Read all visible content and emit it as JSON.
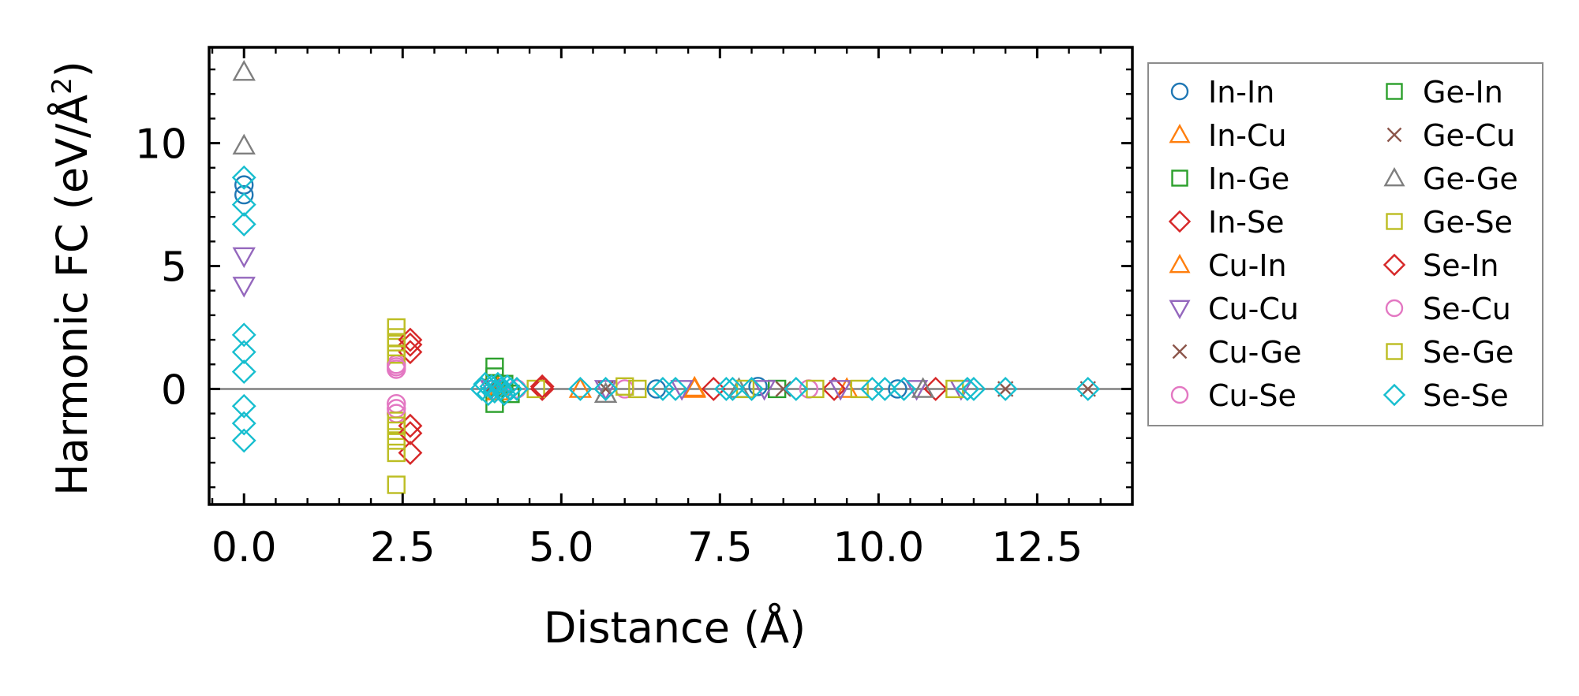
{
  "chart_data": {
    "type": "scatter",
    "xlabel": "Distance (Å)",
    "ylabel_main": "Harmonic FC (eV/Å",
    "ylabel_sup": "2",
    "ylabel_close": ")",
    "xlim": [
      -0.55,
      14.0
    ],
    "ylim": [
      -4.7,
      13.9
    ],
    "xticks": [
      0.0,
      2.5,
      5.0,
      7.5,
      10.0,
      12.5
    ],
    "xtick_labels": [
      "0.0",
      "2.5",
      "5.0",
      "7.5",
      "10.0",
      "12.5"
    ],
    "yticks": [
      0,
      5,
      10
    ],
    "ytick_labels": [
      "0",
      "5",
      "10"
    ],
    "legend_location": "outside-right",
    "series": [
      {
        "name": "In-In",
        "color": "#1f77b4",
        "marker": "circle",
        "points": [
          [
            0,
            8.3
          ],
          [
            0,
            7.9
          ],
          [
            6.5,
            0.0
          ],
          [
            8.1,
            0.1
          ],
          [
            10.3,
            0.0
          ]
        ]
      },
      {
        "name": "In-Cu",
        "color": "#ff7f0e",
        "marker": "triangle-up",
        "points": [
          [
            4.0,
            0.1
          ],
          [
            5.3,
            0.0
          ],
          [
            7.1,
            0.0
          ],
          [
            9.5,
            0.0
          ]
        ]
      },
      {
        "name": "In-Ge",
        "color": "#2ca02c",
        "marker": "square",
        "points": [
          [
            3.95,
            0.9
          ],
          [
            3.95,
            -0.6
          ],
          [
            4.1,
            0.2
          ],
          [
            8.4,
            0.0
          ]
        ]
      },
      {
        "name": "In-Se",
        "color": "#d62728",
        "marker": "diamond",
        "points": [
          [
            2.62,
            1.8
          ],
          [
            2.62,
            1.5
          ],
          [
            2.62,
            -1.5
          ],
          [
            2.62,
            -2.6
          ],
          [
            4.7,
            0.0
          ],
          [
            7.4,
            0.0
          ],
          [
            9.3,
            0.0
          ],
          [
            10.9,
            0.0
          ]
        ]
      },
      {
        "name": "Cu-In",
        "color": "#ff7f0e",
        "marker": "triangle-up",
        "points": [
          [
            4.0,
            -0.1
          ],
          [
            7.1,
            0.05
          ]
        ]
      },
      {
        "name": "Cu-Cu",
        "color": "#9467bd",
        "marker": "triangle-down",
        "points": [
          [
            0,
            5.4
          ],
          [
            0,
            4.2
          ],
          [
            3.9,
            0.0
          ],
          [
            5.7,
            0.0
          ],
          [
            6.9,
            0.0
          ],
          [
            8.2,
            0.0
          ],
          [
            9.4,
            0.0
          ],
          [
            10.6,
            0.0
          ],
          [
            11.3,
            0.0
          ]
        ]
      },
      {
        "name": "Cu-Ge",
        "color": "#8c564b",
        "marker": "x",
        "points": [
          [
            3.9,
            0.0
          ],
          [
            5.7,
            0.0
          ],
          [
            8.5,
            0.0
          ],
          [
            12.0,
            0.0
          ],
          [
            13.3,
            0.0
          ]
        ]
      },
      {
        "name": "Cu-Se",
        "color": "#e377c2",
        "marker": "circle",
        "points": [
          [
            2.4,
            1.0
          ],
          [
            2.4,
            0.8
          ],
          [
            2.4,
            -0.6
          ],
          [
            2.4,
            -1.0
          ],
          [
            4.3,
            0.0
          ],
          [
            6.0,
            0.0
          ],
          [
            8.9,
            0.0
          ]
        ]
      },
      {
        "name": "Ge-In",
        "color": "#2ca02c",
        "marker": "square",
        "points": [
          [
            3.95,
            0.5
          ],
          [
            4.2,
            -0.2
          ]
        ]
      },
      {
        "name": "Ge-Cu",
        "color": "#8c564b",
        "marker": "x",
        "points": [
          [
            3.9,
            0.1
          ]
        ]
      },
      {
        "name": "Ge-Ge",
        "color": "#7f7f7f",
        "marker": "triangle-up",
        "points": [
          [
            0,
            12.9
          ],
          [
            0,
            9.9
          ],
          [
            5.7,
            -0.2
          ],
          [
            7.8,
            0.0
          ],
          [
            10.7,
            0.0
          ]
        ]
      },
      {
        "name": "Ge-Se",
        "color": "#bcbd22",
        "marker": "square",
        "points": [
          [
            2.4,
            2.5
          ],
          [
            2.4,
            2.1
          ],
          [
            2.4,
            1.7
          ],
          [
            2.4,
            1.4
          ],
          [
            2.4,
            -1.3
          ],
          [
            2.4,
            -1.7
          ],
          [
            2.4,
            -2.1
          ],
          [
            2.4,
            -2.6
          ],
          [
            2.4,
            -3.9
          ],
          [
            4.6,
            0.0
          ],
          [
            6.0,
            0.1
          ],
          [
            6.2,
            0.0
          ],
          [
            7.9,
            0.0
          ],
          [
            9.0,
            0.0
          ],
          [
            9.7,
            0.0
          ],
          [
            11.2,
            0.0
          ]
        ]
      },
      {
        "name": "Se-In",
        "color": "#d62728",
        "marker": "diamond",
        "points": [
          [
            2.62,
            2.0
          ],
          [
            2.62,
            -1.8
          ],
          [
            4.7,
            0.1
          ]
        ]
      },
      {
        "name": "Se-Cu",
        "color": "#e377c2",
        "marker": "circle",
        "points": [
          [
            2.4,
            0.9
          ],
          [
            2.4,
            -0.8
          ]
        ]
      },
      {
        "name": "Se-Ge",
        "color": "#bcbd22",
        "marker": "square",
        "points": [
          [
            2.4,
            1.9
          ],
          [
            2.4,
            -1.5
          ]
        ]
      },
      {
        "name": "Se-Se",
        "color": "#17becf",
        "marker": "diamond",
        "points": [
          [
            0,
            8.6
          ],
          [
            0,
            7.5
          ],
          [
            0,
            6.7
          ],
          [
            0,
            2.2
          ],
          [
            0,
            1.5
          ],
          [
            0,
            0.7
          ],
          [
            0,
            -0.7
          ],
          [
            0,
            -1.4
          ],
          [
            0,
            -2.1
          ],
          [
            3.75,
            0.0
          ],
          [
            3.8,
            0.2
          ],
          [
            3.85,
            -0.2
          ],
          [
            3.9,
            0.1
          ],
          [
            3.95,
            -0.1
          ],
          [
            4.0,
            0.2
          ],
          [
            4.05,
            0.0
          ],
          [
            4.1,
            -0.2
          ],
          [
            4.15,
            0.1
          ],
          [
            4.2,
            0.0
          ],
          [
            4.3,
            0.0
          ],
          [
            5.3,
            0.0
          ],
          [
            5.7,
            0.0
          ],
          [
            6.6,
            0.0
          ],
          [
            6.8,
            0.0
          ],
          [
            7.6,
            0.0
          ],
          [
            7.7,
            0.0
          ],
          [
            8.0,
            0.0
          ],
          [
            8.7,
            0.0
          ],
          [
            9.9,
            0.0
          ],
          [
            10.1,
            0.0
          ],
          [
            10.4,
            0.0
          ],
          [
            11.4,
            0.0
          ],
          [
            11.5,
            0.0
          ],
          [
            12.0,
            0.0
          ],
          [
            13.3,
            0.0
          ]
        ]
      }
    ]
  }
}
